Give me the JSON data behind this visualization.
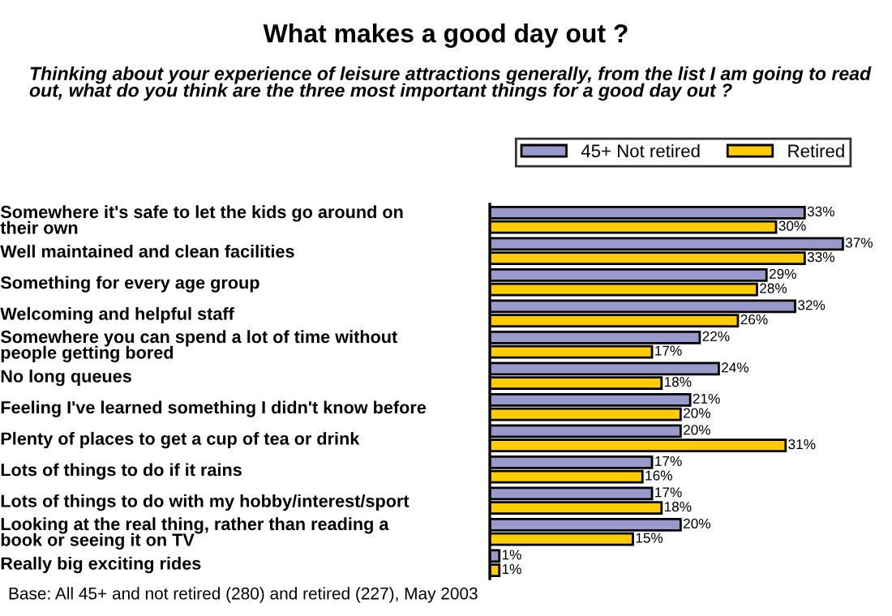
{
  "chart_data": {
    "type": "bar",
    "orientation": "horizontal",
    "title": "What makes a good day out ?",
    "subtitle": "Thinking about your experience of leisure attractions generally, from the list I am going to read out, what do you think are the three most important things for a good day out ?",
    "categories": [
      "Somewhere it's safe to let the kids go around on\ntheir own",
      "Well maintained and clean facilities",
      "Something for every age group",
      "Welcoming and helpful staff",
      "Somewhere you can spend a lot of time without\npeople getting bored",
      "No long queues",
      "Feeling I've learned something I didn't know before",
      "Plenty of places to get a cup of tea or drink",
      "Lots of things to do if it rains",
      "Lots of things to do with my hobby/interest/sport",
      "Looking at the real thing, rather than reading a\nbook or seeing it on TV",
      "Really big exciting rides"
    ],
    "series": [
      {
        "name": "45+ Not retired",
        "color": "#9999cc",
        "values": [
          33,
          37,
          29,
          32,
          22,
          24,
          21,
          20,
          17,
          17,
          20,
          1
        ],
        "value_labels": [
          "33%",
          "37%",
          "29%",
          "32%",
          "22%",
          "24%",
          "21%",
          "20%",
          "17%",
          "17%",
          "20%",
          "1%"
        ]
      },
      {
        "name": "Retired",
        "color": "#ffcc00",
        "values": [
          30,
          33,
          28,
          26,
          17,
          18,
          20,
          31,
          16,
          18,
          15,
          1
        ],
        "value_labels": [
          "30%",
          "33%",
          "28%",
          "26%",
          "17%",
          "18%",
          "20%",
          "31%",
          "16%",
          "18%",
          "15%",
          "1%"
        ]
      }
    ],
    "tick_labels": "y",
    "legend": "top right",
    "grid": false,
    "annotations": [
      "Base: All 45+ and not retired (280) and retired (227), May 2003"
    ]
  }
}
